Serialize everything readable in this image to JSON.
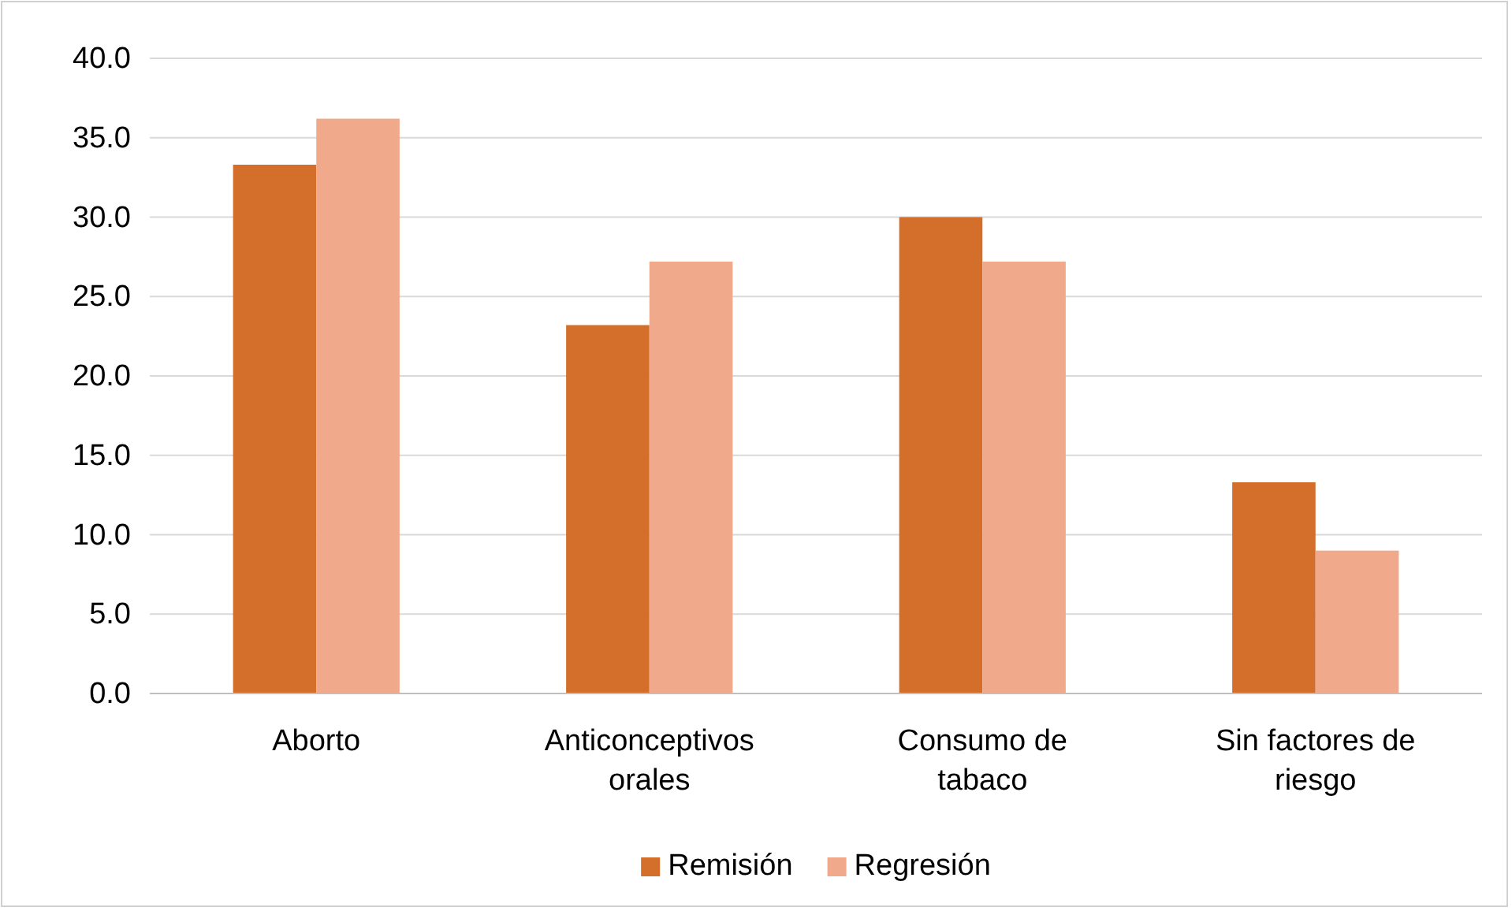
{
  "chart_data": {
    "type": "bar",
    "categories": [
      "Aborto",
      "Anticonceptivos orales",
      "Consumo de tabaco",
      "Sin factores de riesgo"
    ],
    "series": [
      {
        "name": "Remisión",
        "color": "#d36e2b",
        "values": [
          33.3,
          23.2,
          30.0,
          13.3
        ]
      },
      {
        "name": "Regresión",
        "color": "#f1a98b",
        "values": [
          36.2,
          27.2,
          27.2,
          9.0
        ]
      }
    ],
    "ylim": [
      0,
      40
    ],
    "yticks": [
      {
        "value": 0,
        "label": "0.0"
      },
      {
        "value": 5,
        "label": "5.0"
      },
      {
        "value": 10,
        "label": "10.0"
      },
      {
        "value": 15,
        "label": "15.0"
      },
      {
        "value": 20,
        "label": "20.0"
      },
      {
        "value": 25,
        "label": "25.0"
      },
      {
        "value": 30,
        "label": "30.0"
      },
      {
        "value": 35,
        "label": "35.0"
      },
      {
        "value": 40,
        "label": "40.0"
      }
    ],
    "grid": "y",
    "legend": "bottom"
  }
}
